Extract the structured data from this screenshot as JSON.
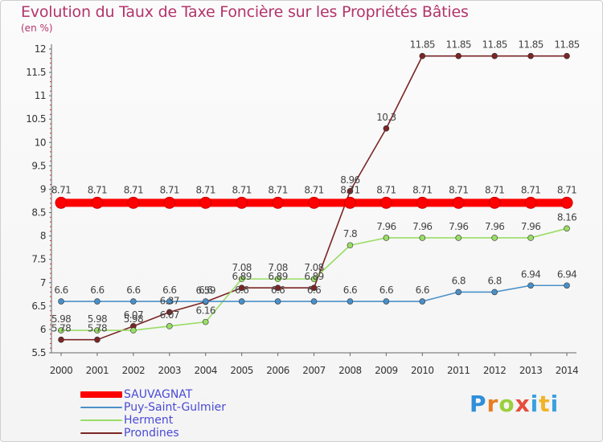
{
  "chart_data": {
    "type": "line",
    "title": "Evolution du Taux de Taxe Foncière sur les Propriétés Bâties",
    "subtitle": "(en %)",
    "xlabel": "",
    "ylabel": "(en %)",
    "x": [
      "2000",
      "2001",
      "2002",
      "2003",
      "2004",
      "2005",
      "2006",
      "2007",
      "2008",
      "2009",
      "2010",
      "2011",
      "2012",
      "2013",
      "2014"
    ],
    "yticks": [
      "5.5",
      "6",
      "6.5",
      "7",
      "7.5",
      "8",
      "8.5",
      "9",
      "9.5",
      "10",
      "10.5",
      "11",
      "11.5",
      "12"
    ],
    "ylim": [
      5.5,
      12
    ],
    "grid": false,
    "legend_position": "bottom-left",
    "series": [
      {
        "name": "SAUVAGNAT",
        "color": "#ff0000",
        "values": [
          8.71,
          8.71,
          8.71,
          8.71,
          8.71,
          8.71,
          8.71,
          8.71,
          8.71,
          8.71,
          8.71,
          8.71,
          8.71,
          8.71,
          8.71
        ],
        "labels": [
          "8.71",
          "8.71",
          "8.71",
          "8.71",
          "8.71",
          "8.71",
          "8.71",
          "8.71",
          "8.71",
          "8.71",
          "8.71",
          "8.71",
          "8.71",
          "8.71",
          "8.71"
        ]
      },
      {
        "name": "Puy-Saint-Gulmier",
        "color": "#4a90c8",
        "values": [
          6.6,
          6.6,
          6.6,
          6.6,
          6.6,
          6.6,
          6.6,
          6.6,
          6.6,
          6.6,
          6.6,
          6.8,
          6.8,
          6.94,
          6.94
        ],
        "labels": [
          "6.6",
          "6.6",
          "6.6",
          "6.6",
          "6.6",
          "6.6",
          "6.6",
          "6.6",
          "6.6",
          "6.6",
          "6.6",
          "6.8",
          "6.8",
          "6.94",
          "6.94"
        ]
      },
      {
        "name": "Herment",
        "color": "#99dd66",
        "values": [
          5.98,
          5.98,
          5.98,
          6.07,
          6.16,
          7.08,
          7.08,
          7.08,
          7.8,
          7.96,
          7.96,
          7.96,
          7.96,
          7.96,
          8.16
        ],
        "labels": [
          "5.98",
          "5.98",
          "5.98",
          "6.07",
          "6.16",
          "7.08",
          "7.08",
          "7.08",
          "7.8",
          "7.96",
          "7.96",
          "7.96",
          "7.96",
          "7.96",
          "8.16"
        ]
      },
      {
        "name": "Prondines",
        "color": "#7b2525",
        "values": [
          5.78,
          5.78,
          6.07,
          6.37,
          6.59,
          6.89,
          6.89,
          6.89,
          8.96,
          10.3,
          11.85,
          11.85,
          11.85,
          11.85,
          11.85
        ],
        "labels": [
          "5.78",
          "5.78",
          "6.07",
          "6.37",
          "6.59",
          "6.89",
          "6.89",
          "6.89",
          "8.96",
          "10.3",
          "11.85",
          "11.85",
          "11.85",
          "11.85",
          "11.85"
        ]
      }
    ]
  },
  "logo": {
    "letters": [
      "P",
      "r",
      "o",
      "x",
      "i",
      "t",
      "i"
    ]
  }
}
